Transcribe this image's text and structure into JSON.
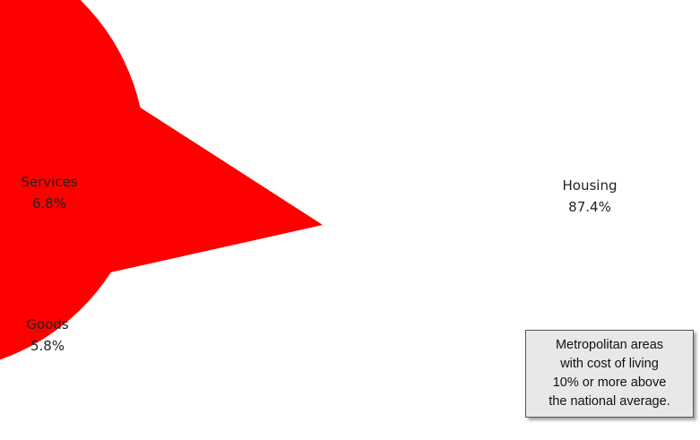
{
  "chart_data": {
    "type": "pie",
    "title": "",
    "slices": [
      {
        "label": "Housing",
        "value": 87.4,
        "display": "87.4%",
        "color": "#ff0000"
      },
      {
        "label": "Goods",
        "value": 5.8,
        "display": "5.8%",
        "color": "#99ff33"
      },
      {
        "label": "Services",
        "value": 6.8,
        "display": "6.8%",
        "color": "#d9d9d9"
      }
    ],
    "legend": "none",
    "annotation": {
      "lines": [
        "Metropolitan areas",
        "with cost of living",
        "10% or more above",
        "the national average."
      ]
    }
  }
}
